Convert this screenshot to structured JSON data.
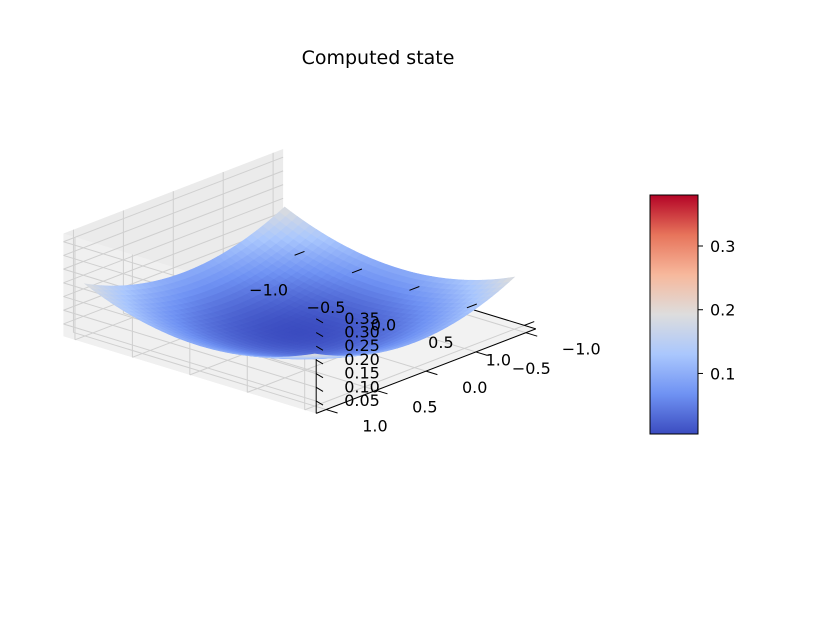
{
  "chart_data": {
    "type": "surface",
    "title": "Computed state",
    "colormap": "coolwarm",
    "colormap_stops": [
      "#3b4cc0",
      "#6f92f3",
      "#aac7fd",
      "#dddddd",
      "#f7b89c",
      "#e7745b",
      "#b40426"
    ],
    "x": {
      "label": "",
      "ticks": [
        "−1.0",
        "−0.5",
        "0.0",
        "0.5",
        "1.0"
      ],
      "range": [
        -1.1,
        1.1
      ]
    },
    "y": {
      "label": "",
      "ticks": [
        "−1.0",
        "−0.5",
        "0.0",
        "0.5",
        "1.0"
      ],
      "range": [
        -1.1,
        1.1
      ]
    },
    "z": {
      "label": "",
      "ticks": [
        "0.05",
        "0.10",
        "0.15",
        "0.20",
        "0.25",
        "0.30",
        "0.35"
      ],
      "range": [
        0.005,
        0.38
      ]
    },
    "surface": {
      "x_range": [
        -1.0,
        1.0
      ],
      "y_range": [
        -1.0,
        1.0
      ],
      "z_min": 0.005,
      "z_max": 0.38,
      "z_center": 0.005,
      "z_edge_mid": 0.19,
      "z_corner": 0.38,
      "bowl_width": 0.45
    },
    "colorbar": {
      "ticks": [
        "0.1",
        "0.2",
        "0.3"
      ],
      "range": [
        0.005,
        0.38
      ]
    },
    "grid": true
  }
}
